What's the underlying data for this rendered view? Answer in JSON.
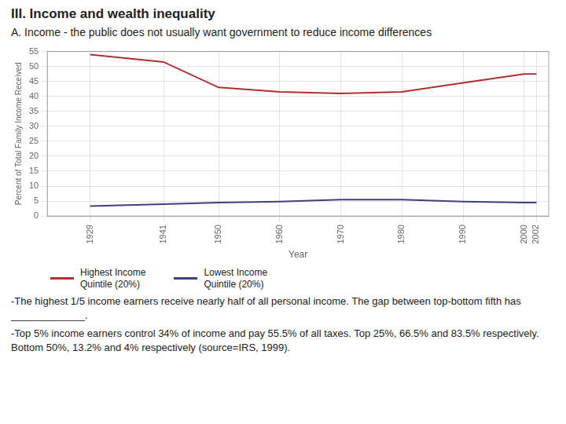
{
  "chart_data": {
    "type": "line",
    "title": "III. Income and wealth inequality",
    "subtitle": "A. Income - the public does not usually want government to reduce income differences",
    "x": [
      1929,
      1941,
      1950,
      1960,
      1970,
      1980,
      1990,
      2000,
      2002
    ],
    "series": [
      {
        "name": "Highest Income\nQuintile (20%)",
        "color": "#b03030",
        "values": [
          54.0,
          51.5,
          43.0,
          41.5,
          41.0,
          41.5,
          44.5,
          47.5,
          47.5
        ]
      },
      {
        "name": "Lowest Income\nQuintile (20%)",
        "color": "#404080",
        "values": [
          3.3,
          4.0,
          4.5,
          4.8,
          5.5,
          5.5,
          4.8,
          4.5,
          4.5
        ]
      }
    ],
    "xlabel": "Year",
    "ylabel": "Percent of Total Family Income Received",
    "xlim": [
      1922,
      2004
    ],
    "xticks": [
      1929,
      1941,
      1950,
      1960,
      1970,
      1980,
      1990,
      2000,
      2002
    ],
    "ylim": [
      0,
      55
    ],
    "yticks": [
      0,
      5,
      10,
      15,
      20,
      25,
      30,
      35,
      40,
      45,
      50,
      55
    ],
    "grid": true,
    "legend": "lower left",
    "annotations": [
      "-The highest 1/5 income earners receive nearly half of all personal income.  The gap between top-bottom fifth has _____________.",
      "-Top 5% income earners control 34% of income and pay 55.5% of all taxes.  Top 25%, 66.5% and 83.5% respectively.  Bottom 50%, 13.2% and 4% respectively (source=IRS, 1999)."
    ]
  }
}
